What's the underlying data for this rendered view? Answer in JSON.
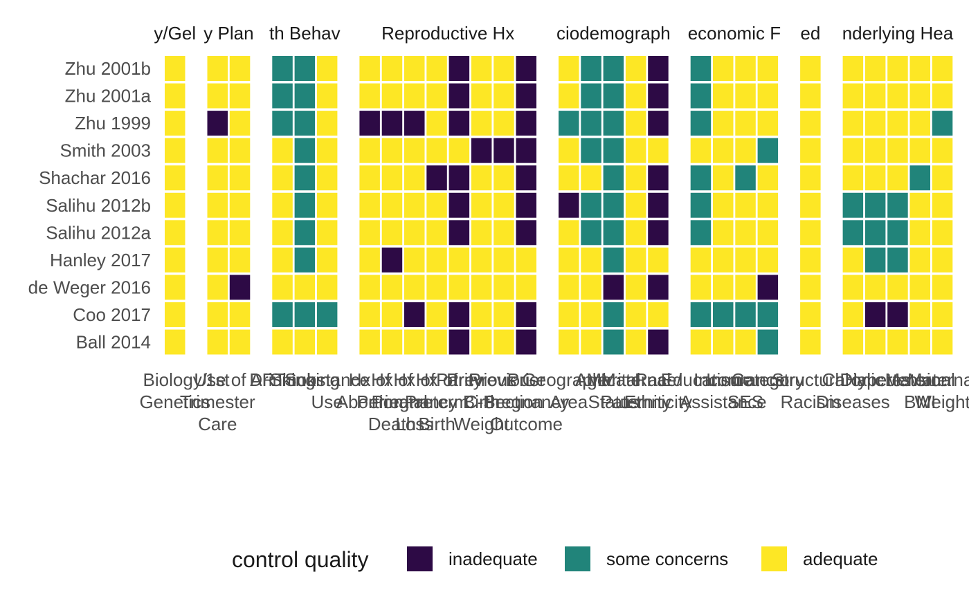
{
  "chart_data": {
    "type": "heatmap",
    "rows": [
      "Zhu 2001b",
      "Zhu 2001a",
      "Zhu 1999",
      "Smith 2003",
      "Shachar 2016",
      "Salihu 2012b",
      "Salihu 2012a",
      "Hanley 2017",
      "de Weger 2016",
      "Coo 2017",
      "Ball 2014"
    ],
    "facets": [
      {
        "title": "y/Gel",
        "columns": [
          {
            "label": "Biology/\nGenetics",
            "values": [
              "adequate",
              "adequate",
              "adequate",
              "adequate",
              "adequate",
              "adequate",
              "adequate",
              "adequate",
              "adequate",
              "adequate",
              "adequate"
            ]
          }
        ]
      },
      {
        "title": "y Plan",
        "columns": [
          {
            "label": "1st\nTrimester\nCare",
            "values": [
              "adequate",
              "adequate",
              "inadequate",
              "adequate",
              "adequate",
              "adequate",
              "adequate",
              "adequate",
              "adequate",
              "adequate",
              "adequate"
            ]
          },
          {
            "label": "Use of ART",
            "values": [
              "adequate",
              "adequate",
              "adequate",
              "adequate",
              "adequate",
              "adequate",
              "adequate",
              "adequate",
              "inadequate",
              "adequate",
              "adequate"
            ]
          }
        ]
      },
      {
        "title": "th Behav",
        "columns": [
          {
            "label": "Drinking",
            "values": [
              "some concerns",
              "some concerns",
              "some concerns",
              "adequate",
              "adequate",
              "adequate",
              "adequate",
              "adequate",
              "adequate",
              "some concerns",
              "adequate"
            ]
          },
          {
            "label": "Smoking",
            "values": [
              "some concerns",
              "some concerns",
              "some concerns",
              "some concerns",
              "some concerns",
              "some concerns",
              "some concerns",
              "some concerns",
              "adequate",
              "some concerns",
              "adequate"
            ]
          },
          {
            "label": "Substance\nUse",
            "values": [
              "adequate",
              "adequate",
              "adequate",
              "adequate",
              "adequate",
              "adequate",
              "adequate",
              "adequate",
              "adequate",
              "some concerns",
              "adequate"
            ]
          }
        ]
      },
      {
        "title": "Reproductive Hx",
        "columns": [
          {
            "label": "Hx of\nAbortion",
            "values": [
              "adequate",
              "adequate",
              "inadequate",
              "adequate",
              "adequate",
              "adequate",
              "adequate",
              "adequate",
              "adequate",
              "adequate",
              "adequate"
            ]
          },
          {
            "label": "Hx of\nPerinatal\nDeath",
            "values": [
              "adequate",
              "adequate",
              "inadequate",
              "adequate",
              "adequate",
              "adequate",
              "adequate",
              "inadequate",
              "adequate",
              "adequate",
              "adequate"
            ]
          },
          {
            "label": "Hx of\nPregnancy\nLoss",
            "values": [
              "adequate",
              "adequate",
              "inadequate",
              "adequate",
              "adequate",
              "adequate",
              "adequate",
              "adequate",
              "adequate",
              "inadequate",
              "adequate"
            ]
          },
          {
            "label": "Hx of\nPreterm\nBirth",
            "values": [
              "adequate",
              "adequate",
              "adequate",
              "adequate",
              "inadequate",
              "adequate",
              "adequate",
              "adequate",
              "adequate",
              "adequate",
              "adequate"
            ]
          },
          {
            "label": "Parity",
            "values": [
              "inadequate",
              "inadequate",
              "inadequate",
              "adequate",
              "inadequate",
              "inadequate",
              "inadequate",
              "adequate",
              "adequate",
              "inadequate",
              "inadequate"
            ]
          },
          {
            "label": "Previous\nBirth\nWeight",
            "values": [
              "adequate",
              "adequate",
              "adequate",
              "inadequate",
              "adequate",
              "adequate",
              "adequate",
              "adequate",
              "adequate",
              "adequate",
              "adequate"
            ]
          },
          {
            "label": "Previous\nC-Section",
            "values": [
              "adequate",
              "adequate",
              "adequate",
              "inadequate",
              "adequate",
              "adequate",
              "adequate",
              "adequate",
              "adequate",
              "adequate",
              "adequate"
            ]
          },
          {
            "label": "Prior\nPregnancy\nOutcome",
            "values": [
              "inadequate",
              "inadequate",
              "inadequate",
              "inadequate",
              "inadequate",
              "inadequate",
              "inadequate",
              "adequate",
              "adequate",
              "inadequate",
              "inadequate"
            ]
          }
        ]
      },
      {
        "title": "ciodemograph",
        "columns": [
          {
            "label": "Geographic\nArea",
            "values": [
              "adequate",
              "adequate",
              "some concerns",
              "adequate",
              "adequate",
              "inadequate",
              "adequate",
              "adequate",
              "adequate",
              "adequate",
              "adequate"
            ]
          },
          {
            "label": "Age",
            "values": [
              "some concerns",
              "some concerns",
              "some concerns",
              "some concerns",
              "adequate",
              "some concerns",
              "some concerns",
              "adequate",
              "adequate",
              "adequate",
              "adequate"
            ]
          },
          {
            "label": "Marital\nStatus",
            "values": [
              "some concerns",
              "some concerns",
              "some concerns",
              "some concerns",
              "some concerns",
              "some concerns",
              "some concerns",
              "some concerns",
              "inadequate",
              "some concerns",
              "some concerns"
            ]
          },
          {
            "label": "Maternal\nPaternity",
            "values": [
              "adequate",
              "adequate",
              "adequate",
              "adequate",
              "adequate",
              "adequate",
              "adequate",
              "adequate",
              "adequate",
              "adequate",
              "adequate"
            ]
          },
          {
            "label": "Race/\nEthnicity",
            "values": [
              "inadequate",
              "inadequate",
              "inadequate",
              "adequate",
              "inadequate",
              "inadequate",
              "inadequate",
              "adequate",
              "inadequate",
              "adequate",
              "inadequate"
            ]
          }
        ]
      },
      {
        "title": "economic F",
        "columns": [
          {
            "label": "Education",
            "values": [
              "some concerns",
              "some concerns",
              "some concerns",
              "adequate",
              "some concerns",
              "some concerns",
              "some concerns",
              "adequate",
              "adequate",
              "some concerns",
              "adequate"
            ]
          },
          {
            "label": "Income\nAssistance",
            "values": [
              "adequate",
              "adequate",
              "adequate",
              "adequate",
              "adequate",
              "adequate",
              "adequate",
              "adequate",
              "adequate",
              "some concerns",
              "adequate"
            ]
          },
          {
            "label": "Insurance\nSES",
            "values": [
              "adequate",
              "adequate",
              "adequate",
              "adequate",
              "some concerns",
              "adequate",
              "adequate",
              "adequate",
              "adequate",
              "some concerns",
              "adequate"
            ]
          },
          {
            "label": "Category",
            "values": [
              "adequate",
              "adequate",
              "adequate",
              "some concerns",
              "adequate",
              "adequate",
              "adequate",
              "adequate",
              "inadequate",
              "some concerns",
              "some concerns"
            ]
          }
        ]
      },
      {
        "title": "ed",
        "columns": [
          {
            "label": "Structural\nRacism",
            "values": [
              "adequate",
              "adequate",
              "adequate",
              "adequate",
              "adequate",
              "adequate",
              "adequate",
              "adequate",
              "adequate",
              "adequate",
              "adequate"
            ]
          }
        ]
      },
      {
        "title": "nderlying Hea",
        "columns": [
          {
            "label": "Chronic\nDiseases",
            "values": [
              "adequate",
              "adequate",
              "adequate",
              "adequate",
              "adequate",
              "some concerns",
              "some concerns",
              "adequate",
              "adequate",
              "adequate",
              "adequate"
            ]
          },
          {
            "label": "Diabetes",
            "values": [
              "adequate",
              "adequate",
              "adequate",
              "adequate",
              "adequate",
              "some concerns",
              "some concerns",
              "some concerns",
              "adequate",
              "inadequate",
              "adequate"
            ]
          },
          {
            "label": "Hypertension",
            "values": [
              "adequate",
              "adequate",
              "adequate",
              "adequate",
              "adequate",
              "some concerns",
              "some concerns",
              "some concerns",
              "adequate",
              "inadequate",
              "adequate"
            ]
          },
          {
            "label": "Maternal\nBMI",
            "values": [
              "adequate",
              "adequate",
              "adequate",
              "adequate",
              "some concerns",
              "adequate",
              "adequate",
              "adequate",
              "adequate",
              "adequate",
              "adequate"
            ]
          },
          {
            "label": "Maternal\nWeight",
            "values": [
              "adequate",
              "adequate",
              "some concerns",
              "adequate",
              "adequate",
              "adequate",
              "adequate",
              "adequate",
              "adequate",
              "adequate",
              "adequate"
            ]
          }
        ]
      }
    ],
    "legend": {
      "title": "control quality",
      "position": "bottom",
      "items": [
        {
          "label": "inadequate",
          "color": "#2d0a45"
        },
        {
          "label": "some concerns",
          "color": "#21847a"
        },
        {
          "label": "adequate",
          "color": "#fde725"
        }
      ]
    }
  }
}
